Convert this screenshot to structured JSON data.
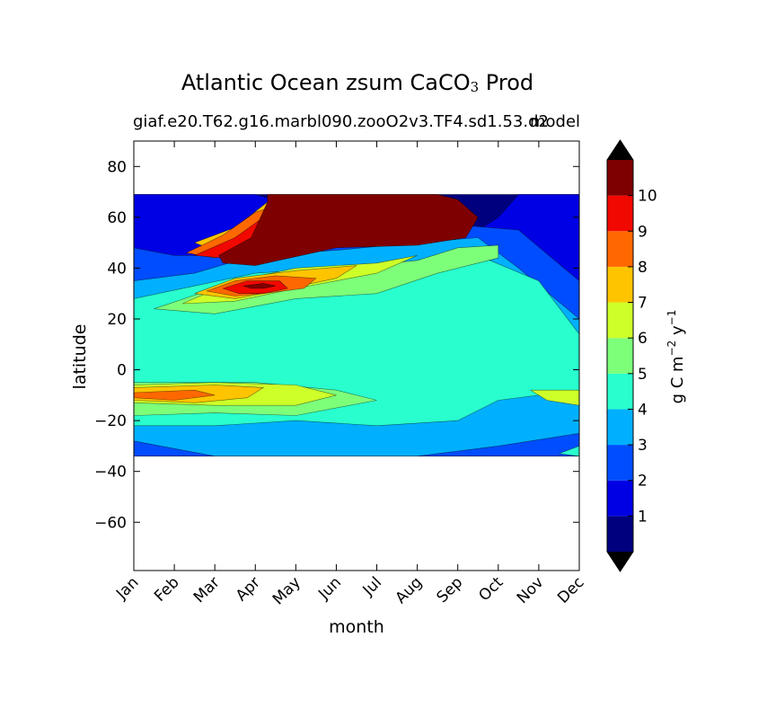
{
  "chart_data": {
    "type": "heatmap",
    "title_main": "Atlantic Ocean zsum CaCO",
    "title_sub": "3",
    "title_tail": " Prod",
    "subtitle": "giaf.e20.T62.g16.marbl090.zooO2v3.TF4.sd1.53.d2",
    "subtitle2": "model",
    "xlabel": "month",
    "ylabel": "latitude",
    "x_ticks": [
      "Jan",
      "Feb",
      "Mar",
      "Apr",
      "May",
      "Jun",
      "Jul",
      "Aug",
      "Sep",
      "Oct",
      "Nov",
      "Dec"
    ],
    "y_ticks": [
      80,
      60,
      40,
      20,
      0,
      -20,
      -40,
      -60
    ],
    "ylim": [
      -79,
      90
    ],
    "xlim": [
      0,
      11
    ],
    "data_lat_range": [
      -34,
      69
    ],
    "colorbar": {
      "label": "g C m",
      "label_exp1": "−2",
      "label_mid": " y",
      "label_exp2": "−1",
      "levels": [
        0,
        1,
        2,
        3,
        4,
        5,
        6,
        7,
        8,
        9,
        10,
        11
      ],
      "tick_labels": [
        "1",
        "2",
        "3",
        "4",
        "5",
        "6",
        "7",
        "8",
        "9",
        "10"
      ],
      "colors": [
        "#00007f",
        "#0000e5",
        "#004dff",
        "#00b0ff",
        "#29ffce",
        "#7dff7a",
        "#ceff29",
        "#ffc400",
        "#ff6800",
        "#f10800",
        "#7f0000"
      ],
      "under_color": "#000000",
      "over_color": "#000000"
    },
    "regions": [
      {
        "level": 1,
        "points": [
          [
            0,
            69
          ],
          [
            11,
            69
          ],
          [
            11,
            -34
          ],
          [
            0,
            -34
          ]
        ]
      },
      {
        "level": 2,
        "points": [
          [
            0,
            69
          ],
          [
            3,
            69
          ],
          [
            5,
            60
          ],
          [
            7,
            55
          ],
          [
            8.5,
            55
          ],
          [
            9,
            60
          ],
          [
            9.5,
            69
          ],
          [
            11,
            69
          ],
          [
            11,
            -34
          ],
          [
            0,
            -34
          ]
        ]
      },
      {
        "level": 3,
        "points": [
          [
            0,
            48
          ],
          [
            1,
            45
          ],
          [
            2,
            45
          ],
          [
            3,
            55
          ],
          [
            4,
            62
          ],
          [
            6,
            60
          ],
          [
            8,
            57
          ],
          [
            9.5,
            55
          ],
          [
            11,
            35
          ],
          [
            11,
            -34
          ],
          [
            0,
            -34
          ],
          [
            0,
            35
          ]
        ]
      },
      {
        "level": 4,
        "points": [
          [
            0,
            35
          ],
          [
            1.5,
            38
          ],
          [
            3,
            45
          ],
          [
            5,
            47
          ],
          [
            7,
            50
          ],
          [
            8.5,
            52
          ],
          [
            9.5,
            40
          ],
          [
            11,
            20
          ],
          [
            11,
            -25
          ],
          [
            9,
            -30
          ],
          [
            7,
            -34
          ],
          [
            2,
            -34
          ],
          [
            0,
            -28
          ]
        ]
      },
      {
        "level": 5,
        "points": [
          [
            0,
            28
          ],
          [
            3,
            38
          ],
          [
            5,
            40
          ],
          [
            7,
            42
          ],
          [
            8.5,
            45
          ],
          [
            10,
            35
          ],
          [
            11,
            14
          ],
          [
            11,
            -8
          ],
          [
            9,
            -12
          ],
          [
            8,
            -20
          ],
          [
            6,
            -22
          ],
          [
            4,
            -20
          ],
          [
            2,
            -22
          ],
          [
            0,
            -22
          ]
        ]
      },
      {
        "level": 5,
        "points": [
          [
            10.5,
            -33
          ],
          [
            11,
            -30
          ],
          [
            11,
            -34
          ]
        ]
      },
      {
        "level": 6,
        "points": [
          [
            0.5,
            24
          ],
          [
            2,
            32
          ],
          [
            3.5,
            38
          ],
          [
            5,
            40
          ],
          [
            7,
            43
          ],
          [
            8,
            48
          ],
          [
            9,
            49
          ],
          [
            9,
            44
          ],
          [
            7.5,
            38
          ],
          [
            6,
            30
          ],
          [
            4,
            28
          ],
          [
            2,
            22
          ]
        ]
      },
      {
        "level": 6,
        "points": [
          [
            0,
            -5
          ],
          [
            3,
            -5
          ],
          [
            5,
            -8
          ],
          [
            6,
            -12
          ],
          [
            4,
            -18
          ],
          [
            2,
            -17
          ],
          [
            0,
            -18
          ]
        ]
      },
      {
        "level": 7,
        "points": [
          [
            1.2,
            26
          ],
          [
            2.5,
            35
          ],
          [
            4,
            40
          ],
          [
            6,
            42
          ],
          [
            7,
            45
          ],
          [
            6,
            38
          ],
          [
            4,
            32
          ],
          [
            2.5,
            27
          ]
        ]
      },
      {
        "level": 7,
        "points": [
          [
            0,
            -6
          ],
          [
            2,
            -5
          ],
          [
            4,
            -6
          ],
          [
            5,
            -10
          ],
          [
            4,
            -14
          ],
          [
            2,
            -14
          ],
          [
            0,
            -13
          ]
        ]
      },
      {
        "level": 7,
        "points": [
          [
            9.8,
            -8
          ],
          [
            11,
            -8
          ],
          [
            11,
            -14
          ],
          [
            10.2,
            -12
          ]
        ]
      },
      {
        "level": 8,
        "points": [
          [
            1.5,
            30
          ],
          [
            2.5,
            36
          ],
          [
            4,
            39
          ],
          [
            5.5,
            41
          ],
          [
            5,
            36
          ],
          [
            3.5,
            31
          ],
          [
            2.5,
            28
          ]
        ]
      },
      {
        "level": 8,
        "points": [
          [
            0,
            -7
          ],
          [
            2,
            -6
          ],
          [
            3.2,
            -7
          ],
          [
            2.8,
            -11
          ],
          [
            1.5,
            -13
          ],
          [
            0,
            -12
          ]
        ]
      },
      {
        "level": 8,
        "points": [
          [
            1.5,
            50
          ],
          [
            2.5,
            56
          ],
          [
            3.3,
            66
          ],
          [
            3.8,
            62
          ],
          [
            3,
            52
          ],
          [
            2,
            47
          ]
        ]
      },
      {
        "level": 9,
        "points": [
          [
            1.8,
            31
          ],
          [
            2.5,
            35
          ],
          [
            3.5,
            37
          ],
          [
            4.5,
            36
          ],
          [
            4.2,
            32
          ],
          [
            3.2,
            30
          ],
          [
            2.5,
            29
          ]
        ]
      },
      {
        "level": 9,
        "points": [
          [
            0,
            -9
          ],
          [
            1.5,
            -8
          ],
          [
            2,
            -10
          ],
          [
            1,
            -12
          ],
          [
            0,
            -11
          ]
        ]
      },
      {
        "level": 9,
        "points": [
          [
            1.3,
            46
          ],
          [
            2.2,
            53
          ],
          [
            3,
            62
          ],
          [
            3.6,
            65
          ],
          [
            3.7,
            60
          ],
          [
            3,
            50
          ],
          [
            2,
            44
          ]
        ]
      },
      {
        "level": 10,
        "points": [
          [
            2.2,
            32
          ],
          [
            2.8,
            35
          ],
          [
            3.6,
            35
          ],
          [
            3.8,
            32
          ],
          [
            3.2,
            30
          ],
          [
            2.6,
            30
          ]
        ]
      },
      {
        "level": 10,
        "points": [
          [
            1.5,
            45
          ],
          [
            2.5,
            52
          ],
          [
            3.2,
            60
          ],
          [
            3.5,
            58
          ],
          [
            3,
            49
          ],
          [
            2.2,
            44
          ]
        ]
      },
      {
        "level": 11,
        "points": [
          [
            2.1,
            45
          ],
          [
            2.9,
            52
          ],
          [
            3.3,
            66
          ],
          [
            3.3,
            69
          ],
          [
            7.5,
            69
          ],
          [
            8,
            67
          ],
          [
            8.5,
            60
          ],
          [
            8.2,
            52
          ],
          [
            7,
            49
          ],
          [
            5,
            48
          ],
          [
            3,
            41
          ],
          [
            2.2,
            42
          ]
        ]
      },
      {
        "level": 11,
        "points": [
          [
            2.7,
            33
          ],
          [
            3.2,
            34
          ],
          [
            3.5,
            33
          ],
          [
            3.2,
            32
          ],
          [
            2.9,
            32
          ]
        ]
      }
    ]
  }
}
